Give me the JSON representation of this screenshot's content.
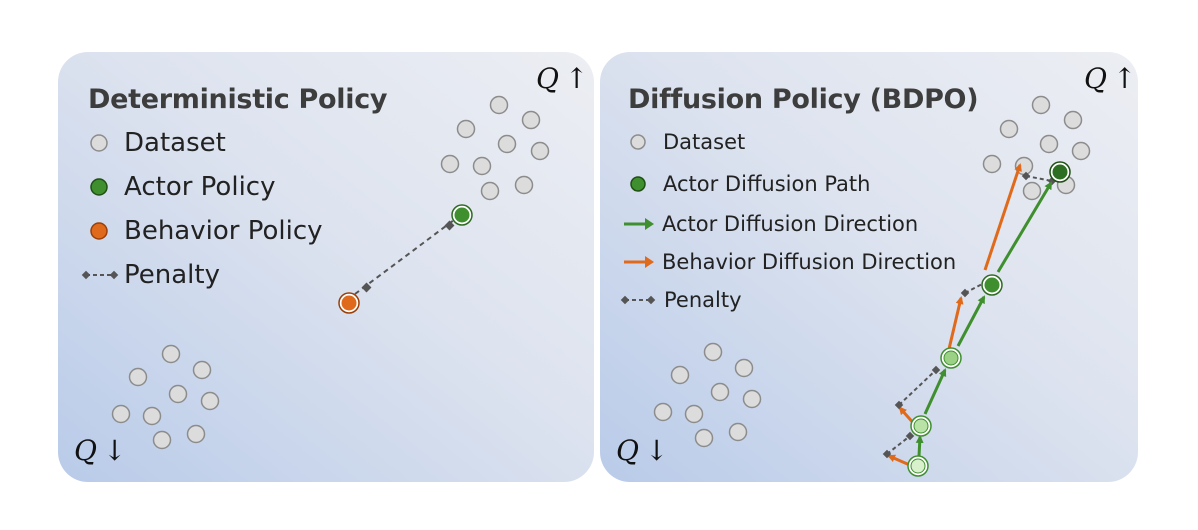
{
  "left_panel": {
    "title": "Deterministic Policy",
    "legend": {
      "dataset": "Dataset",
      "actor": "Actor Policy",
      "behavior": "Behavior Policy",
      "penalty": "Penalty"
    },
    "q_high": "Q",
    "q_low": "Q"
  },
  "right_panel": {
    "title": "Diffusion Policy (BDPO)",
    "legend": {
      "dataset": "Dataset",
      "actor_path": "Actor Diffusion Path",
      "actor_direction": "Actor Diffusion Direction",
      "behavior_direction": "Behavior Diffusion Direction",
      "penalty": "Penalty"
    },
    "q_high": "Q",
    "q_low": "Q"
  },
  "arrows": {
    "up": "↑",
    "down": "↓"
  },
  "colors": {
    "dataset_fill": "#dcdcdc",
    "dataset_stroke": "#8c8c8c",
    "actor": "#3f8f2f",
    "behavior": "#e06a1b",
    "penalty": "#555555",
    "actor_light": "#b9e3a6",
    "actor_lightest": "#d9f0cc"
  }
}
